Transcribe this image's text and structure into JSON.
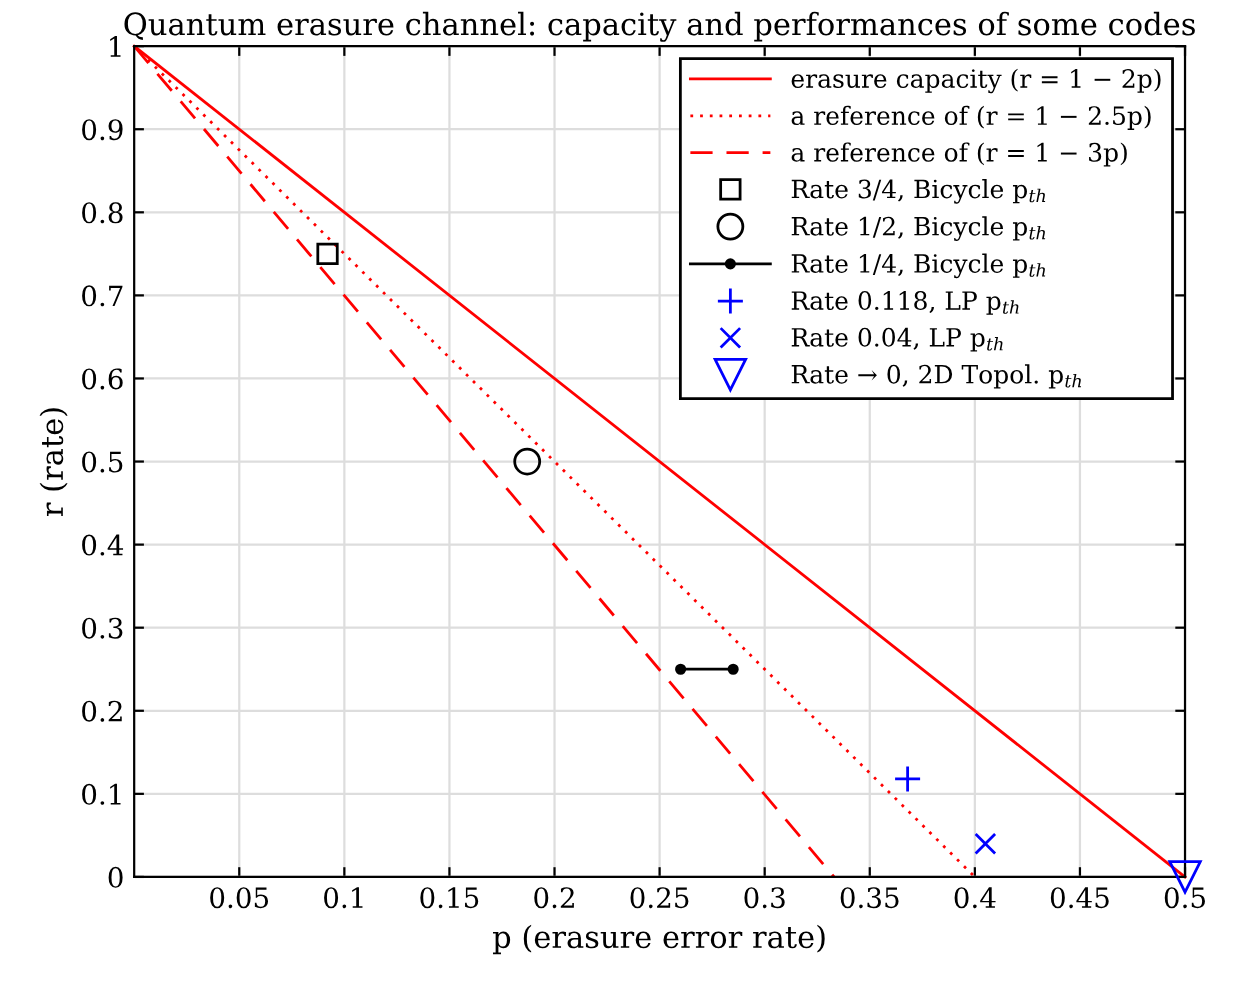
{
  "chart_data": {
    "type": "line",
    "title": "Quantum erasure channel: capacity and performances of some codes",
    "xlabel": "p (erasure error rate)",
    "ylabel": "r (rate)",
    "xlim": [
      0,
      0.5
    ],
    "ylim": [
      0,
      1
    ],
    "xticks": [
      0.05,
      0.1,
      0.15,
      0.2,
      0.25,
      0.3,
      0.35,
      0.4,
      0.45,
      0.5
    ],
    "yticks": [
      0,
      0.1,
      0.2,
      0.3,
      0.4,
      0.5,
      0.6,
      0.7,
      0.8,
      0.9,
      1
    ],
    "grid": true,
    "legend": "top right",
    "series": [
      {
        "name": "erasure capacity (r = 1 − 2p)",
        "color": "#ff0000",
        "line_style": "solid",
        "marker": "none",
        "x": [
          0,
          0.5
        ],
        "values": [
          1,
          0
        ]
      },
      {
        "name": "a reference of (r = 1 − 2.5p)",
        "color": "#ff0000",
        "line_style": "dotted",
        "marker": "none",
        "x": [
          0,
          0.4
        ],
        "values": [
          1,
          0
        ]
      },
      {
        "name": "a reference of (r = 1 − 3p)",
        "color": "#ff0000",
        "line_style": "dashed",
        "marker": "none",
        "x": [
          0,
          0.333
        ],
        "values": [
          1,
          0
        ]
      },
      {
        "name": "Rate 3/4, Bicycle p$_{th}$",
        "type": "scatter",
        "color": "#000000",
        "marker": "square",
        "x": [
          0.092
        ],
        "values": [
          0.75
        ]
      },
      {
        "name": "Rate 1/2, Bicycle p$_{th}$",
        "type": "scatter",
        "color": "#000000",
        "marker": "circle",
        "x": [
          0.187
        ],
        "values": [
          0.5
        ]
      },
      {
        "name": "Rate 1/4, Bicycle p$_{th}$",
        "color": "#000000",
        "line_style": "solid",
        "marker": "circle",
        "x": [
          0.26,
          0.285
        ],
        "values": [
          0.25,
          0.25
        ]
      },
      {
        "name": "Rate 0.118, LP p$_{th}$",
        "type": "scatter",
        "color": "#0000ff",
        "marker": "plus",
        "x": [
          0.368
        ],
        "values": [
          0.118
        ]
      },
      {
        "name": "Rate 0.04, LP p$_{th}$",
        "type": "scatter",
        "color": "#0000ff",
        "marker": "cross",
        "x": [
          0.405
        ],
        "values": [
          0.04
        ]
      },
      {
        "name": "Rate → 0, 2D Topol. p$_{th}$",
        "type": "scatter",
        "color": "#0000ff",
        "marker": "triangle_down",
        "x": [
          0.5
        ],
        "values": [
          0
        ]
      }
    ]
  }
}
